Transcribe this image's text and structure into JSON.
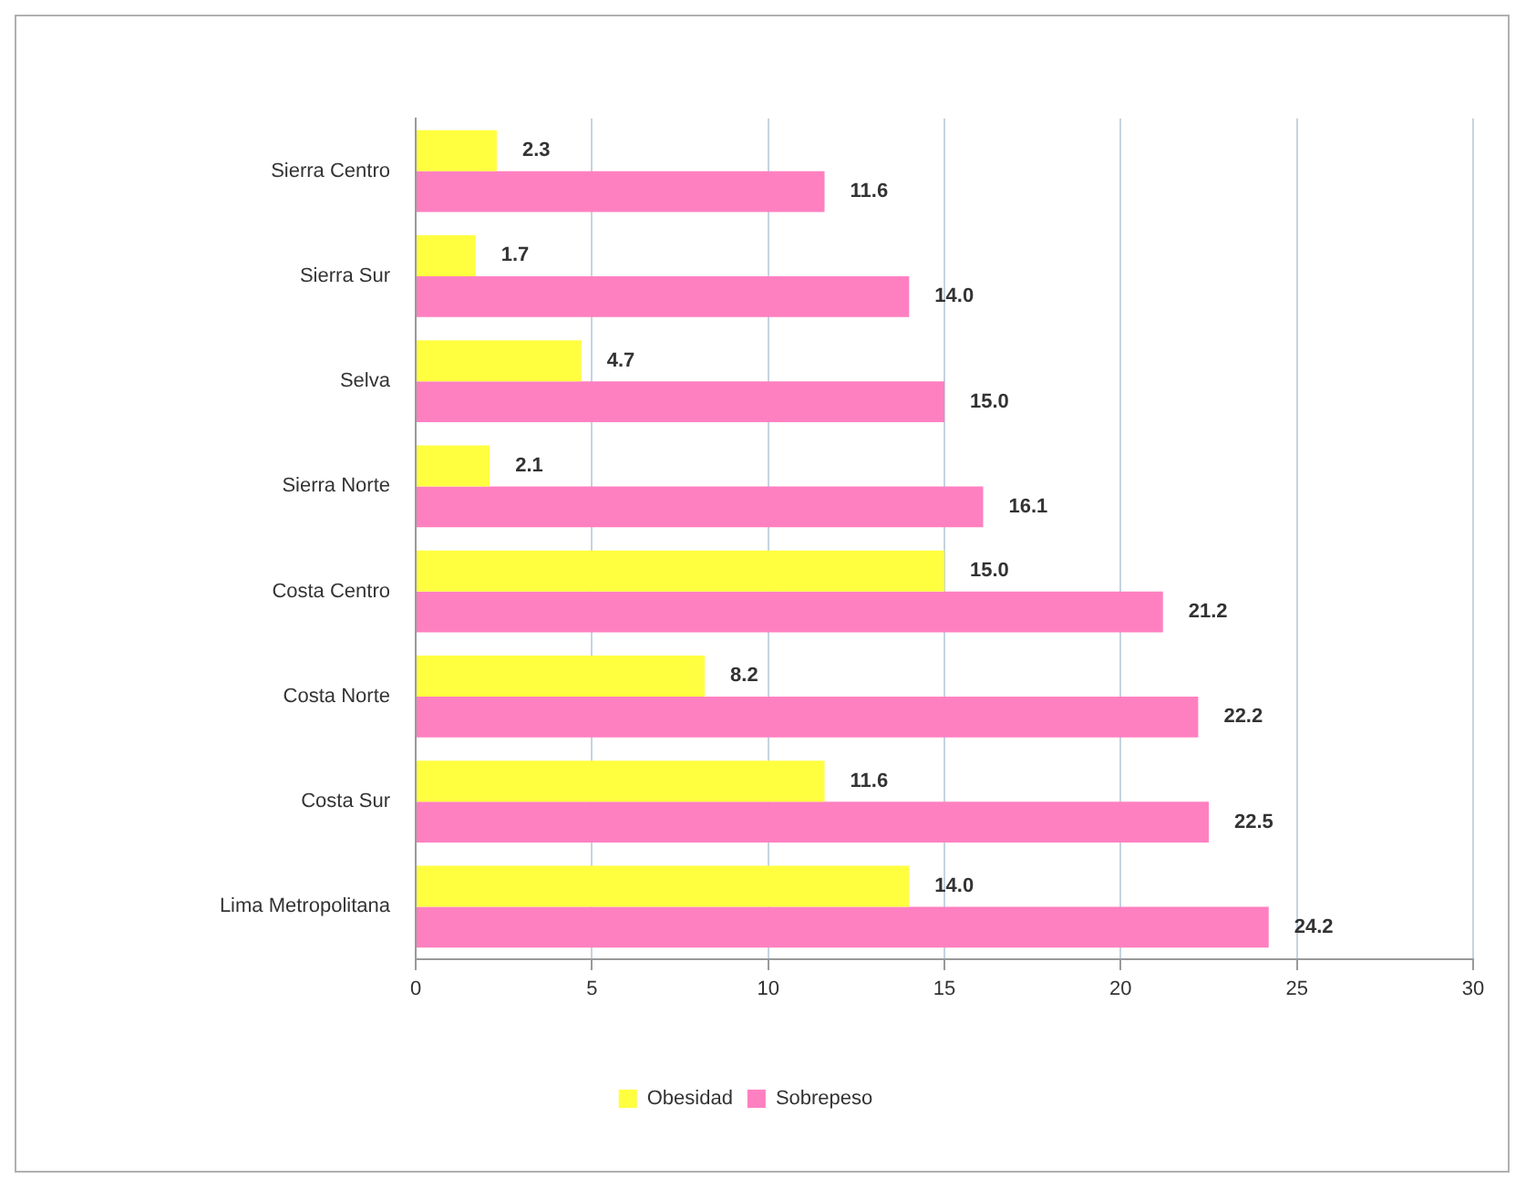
{
  "chart_data": {
    "type": "bar",
    "orientation": "horizontal",
    "categories": [
      "Sierra Centro",
      "Sierra Sur",
      "Selva",
      "Sierra Norte",
      "Costa Centro",
      "Costa Norte",
      "Costa Sur",
      "Lima Metropolitana"
    ],
    "series": [
      {
        "name": "Obesidad",
        "color": "#ffff40",
        "values": [
          2.3,
          1.7,
          4.7,
          2.1,
          15.0,
          8.2,
          11.6,
          14.0
        ],
        "value_labels": [
          "2.3",
          "1.7",
          "4.7",
          "2.1",
          "15.0",
          "8.2",
          "11.6",
          "14.0"
        ]
      },
      {
        "name": "Sobrepeso",
        "color": "#ff80c0",
        "values": [
          11.6,
          14.0,
          15.0,
          16.1,
          21.2,
          22.2,
          22.5,
          24.2
        ],
        "value_labels": [
          "11.6",
          "14.0",
          "15.0",
          "16.1",
          "21.2",
          "22.2",
          "22.5",
          "24.2"
        ]
      }
    ],
    "xlim": [
      0,
      30
    ],
    "xticks": [
      0,
      5,
      10,
      15,
      20,
      25,
      30
    ],
    "grid": "x",
    "legend": "bottom"
  }
}
